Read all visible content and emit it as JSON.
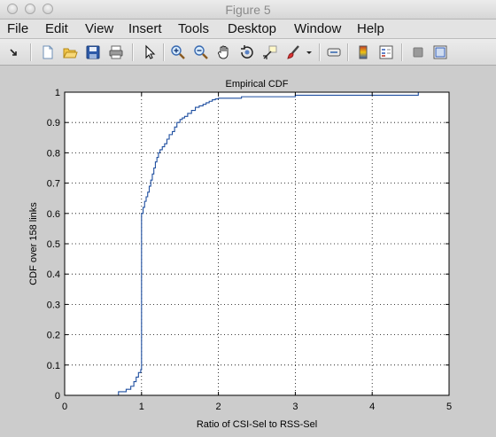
{
  "window": {
    "title": "Figure 5"
  },
  "menu": {
    "items": [
      "File",
      "Edit",
      "View",
      "Insert",
      "Tools",
      "Desktop",
      "Window",
      "Help"
    ]
  },
  "toolbar": {
    "icons": [
      "dock-arrow-icon",
      "new-figure-icon",
      "open-file-icon",
      "save-icon",
      "print-icon",
      "select-pointer-icon",
      "zoom-in-icon",
      "zoom-out-icon",
      "pan-hand-icon",
      "rotate-3d-icon",
      "data-cursor-icon",
      "brush-icon",
      "brush-dropdown-icon",
      "link-plot-icon",
      "colorbar-icon",
      "legend-icon",
      "hide-plot-tools-icon",
      "show-plot-tools-icon"
    ]
  },
  "chart_data": {
    "type": "line",
    "title": "Empirical CDF",
    "xlabel": "Ratio of CSI-Sel to RSS-Sel",
    "ylabel": "CDF over 158 links",
    "xlim": [
      0,
      5
    ],
    "ylim": [
      0,
      1
    ],
    "xticks": [
      "0",
      "1",
      "2",
      "3",
      "4",
      "5"
    ],
    "yticks": [
      "0",
      "0.1",
      "0.2",
      "0.3",
      "0.4",
      "0.5",
      "0.6",
      "0.7",
      "0.8",
      "0.9",
      "1"
    ],
    "grid": true,
    "series": [
      {
        "color": "#1f4fa0",
        "step": true,
        "x": [
          0.08,
          0.7,
          0.8,
          0.86,
          0.9,
          0.93,
          0.96,
          0.99,
          1.0,
          1.02,
          1.04,
          1.06,
          1.08,
          1.1,
          1.12,
          1.14,
          1.16,
          1.18,
          1.2,
          1.22,
          1.24,
          1.27,
          1.3,
          1.33,
          1.36,
          1.4,
          1.43,
          1.46,
          1.5,
          1.53,
          1.56,
          1.6,
          1.65,
          1.7,
          1.75,
          1.8,
          1.84,
          1.88,
          1.92,
          1.96,
          2.0,
          2.3,
          3.0,
          4.6
        ],
        "y": [
          0.0,
          0.012,
          0.02,
          0.03,
          0.045,
          0.06,
          0.075,
          0.085,
          0.6,
          0.62,
          0.64,
          0.655,
          0.67,
          0.69,
          0.71,
          0.73,
          0.75,
          0.77,
          0.785,
          0.8,
          0.81,
          0.82,
          0.83,
          0.845,
          0.86,
          0.87,
          0.885,
          0.9,
          0.91,
          0.915,
          0.92,
          0.93,
          0.94,
          0.95,
          0.955,
          0.96,
          0.965,
          0.97,
          0.975,
          0.978,
          0.98,
          0.985,
          0.99,
          1.0
        ]
      }
    ]
  }
}
